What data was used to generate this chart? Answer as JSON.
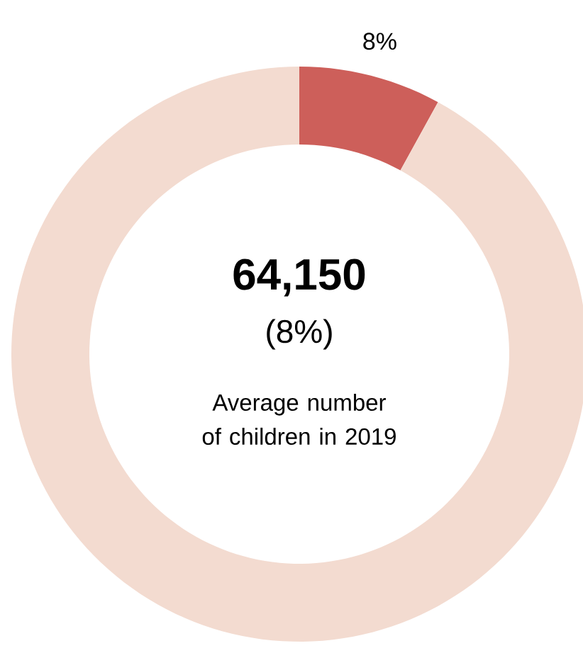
{
  "chart_data": {
    "type": "donut",
    "categories": [
      null,
      null
    ],
    "values": [
      8,
      92
    ],
    "colors": [
      "#cd5f5a",
      "#f3dbd0"
    ],
    "value_labels": [
      "8%",
      null
    ],
    "annotations": [
      "64,150",
      "(8%)",
      "Average number of children in 2019"
    ]
  }
}
